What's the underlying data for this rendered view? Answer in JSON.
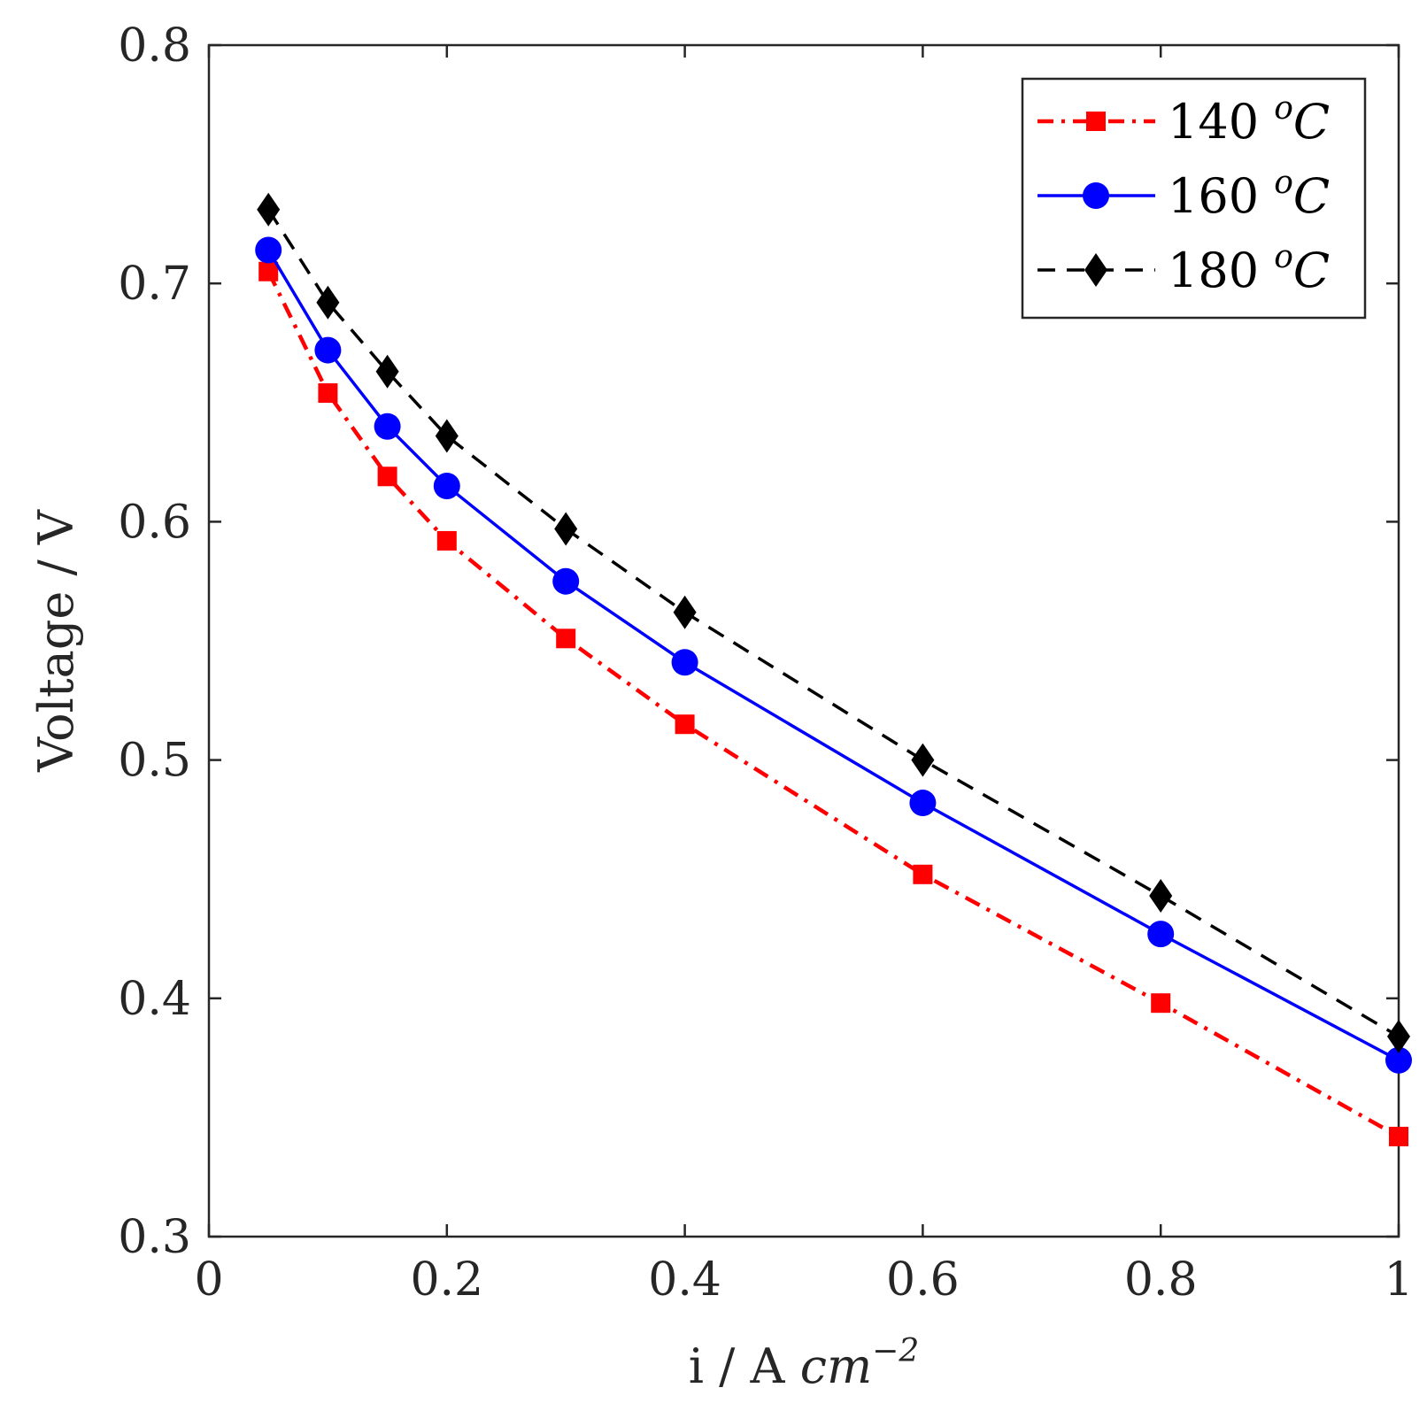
{
  "chart_data": {
    "type": "line",
    "title": "",
    "xlabel": "i / A",
    "xlabel_unit": "cm",
    "xlabel_exponent": "−2",
    "ylabel": "Voltage / V",
    "xlim": [
      0,
      1
    ],
    "ylim": [
      0.3,
      0.8
    ],
    "xticks": [
      0,
      0.2,
      0.4,
      0.6,
      0.8,
      1
    ],
    "xtick_labels": [
      "0",
      "0.2",
      "0.4",
      "0.6",
      "0.8",
      "1"
    ],
    "yticks": [
      0.3,
      0.4,
      0.5,
      0.6,
      0.7,
      0.8
    ],
    "ytick_labels": [
      "0.3",
      "0.4",
      "0.5",
      "0.6",
      "0.7",
      "0.8"
    ],
    "grid": false,
    "legend_position": "top-right",
    "x": [
      0.05,
      0.1,
      0.15,
      0.2,
      0.3,
      0.4,
      0.6,
      0.8,
      1.0
    ],
    "series": [
      {
        "name": "140 °C",
        "legend_value": "140",
        "legend_super": "o",
        "legend_unit": "C",
        "color": "#ff0000",
        "line_style": "dashdot",
        "marker": "square",
        "values": [
          0.705,
          0.654,
          0.619,
          0.592,
          0.551,
          0.515,
          0.452,
          0.398,
          0.342
        ]
      },
      {
        "name": "160 °C",
        "legend_value": "160",
        "legend_super": "o",
        "legend_unit": "C",
        "color": "#0000ff",
        "line_style": "solid",
        "marker": "circle",
        "values": [
          0.714,
          0.672,
          0.64,
          0.615,
          0.575,
          0.541,
          0.482,
          0.427,
          0.374
        ]
      },
      {
        "name": "180 °C",
        "legend_value": "180",
        "legend_super": "o",
        "legend_unit": "C",
        "color": "#000000",
        "line_style": "dashed",
        "marker": "diamond",
        "values": [
          0.731,
          0.692,
          0.663,
          0.636,
          0.597,
          0.562,
          0.5,
          0.443,
          0.384
        ]
      }
    ]
  }
}
